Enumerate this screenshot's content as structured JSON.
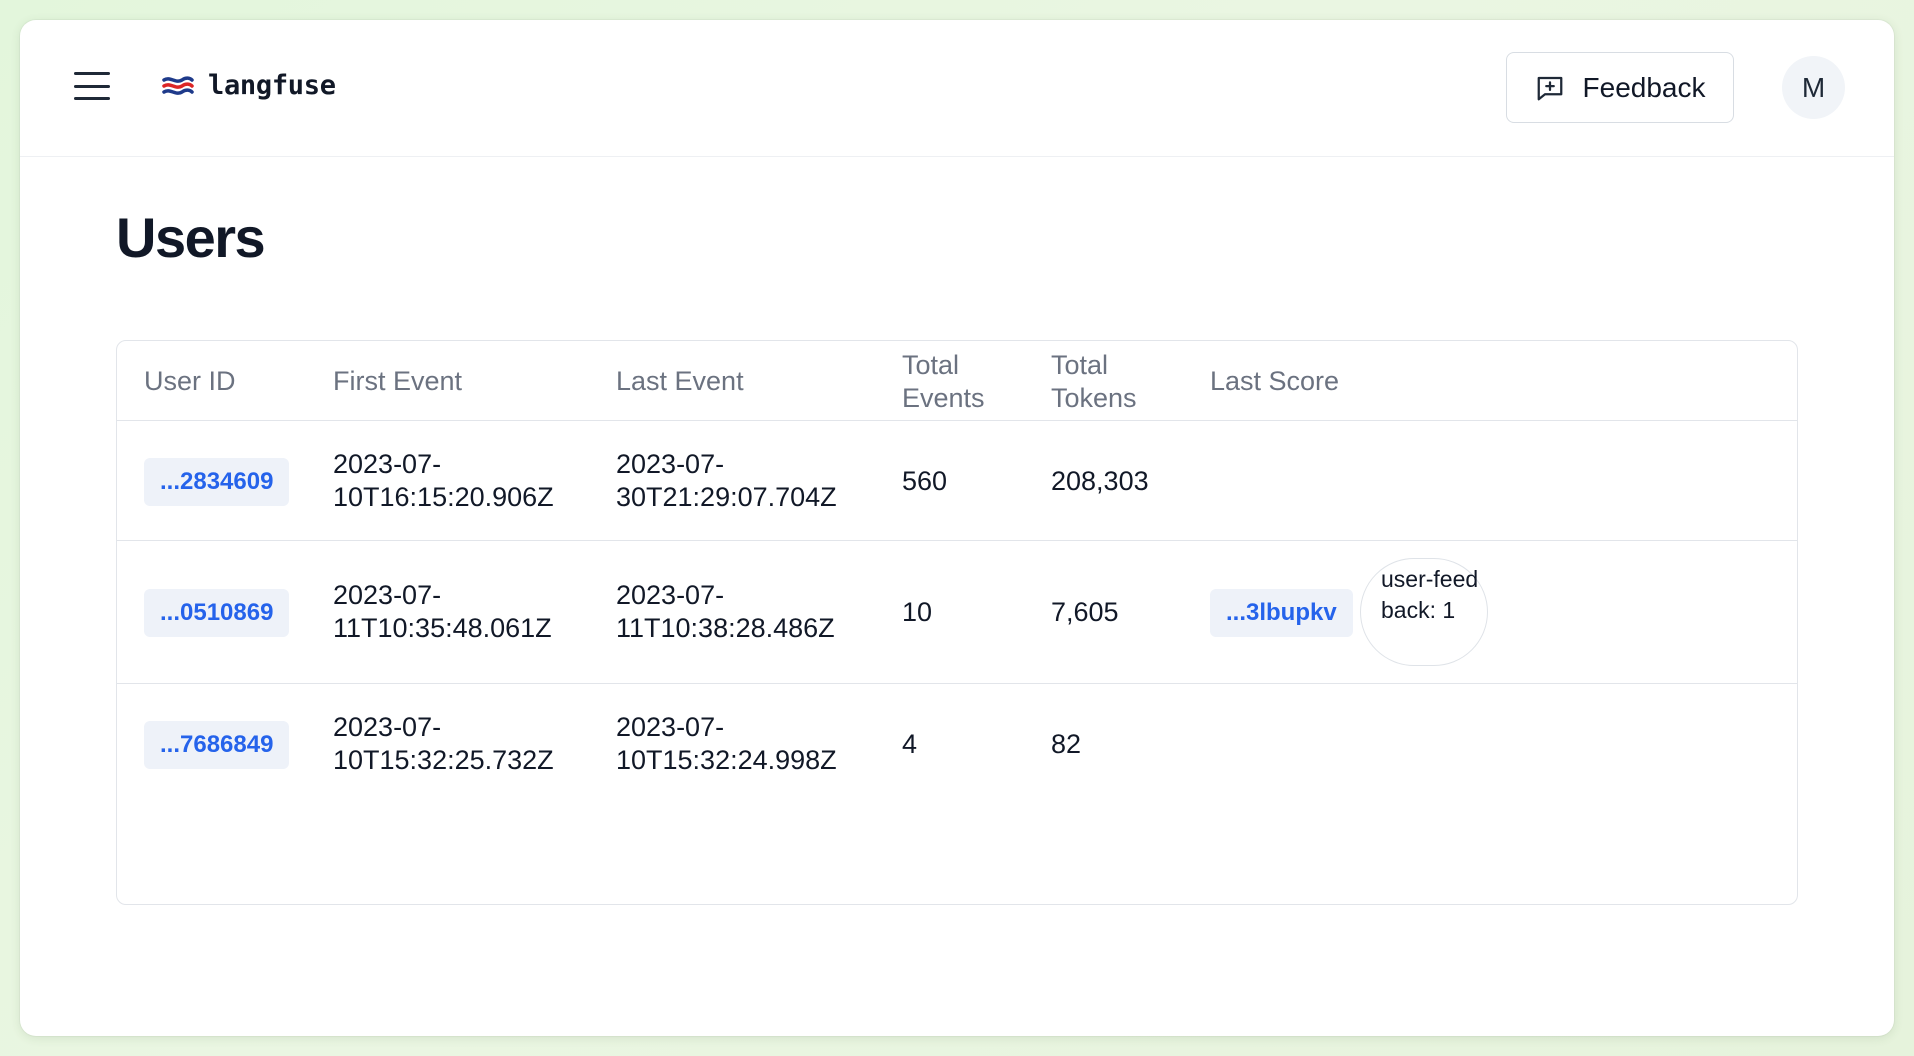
{
  "app": {
    "brand_name": "langfuse",
    "menu_icon": "hamburger-menu-icon",
    "logo_icon": "langfuse-logo-icon",
    "feedback_label": "Feedback",
    "feedback_icon": "message-plus-icon",
    "avatar_initial": "M"
  },
  "page": {
    "title": "Users"
  },
  "table": {
    "headers": {
      "user_id": "User ID",
      "first_event": "First Event",
      "last_event": "Last Event",
      "total_events_1": "Total",
      "total_events_2": "Events",
      "total_tokens_1": "Total",
      "total_tokens_2": "Tokens",
      "last_score": "Last Score"
    },
    "rows": [
      {
        "user_id": "...2834609",
        "first_event_1": "2023-07-",
        "first_event_2": "10T16:15:20.906Z",
        "last_event_1": "2023-07-",
        "last_event_2": "30T21:29:07.704Z",
        "total_events": "560",
        "total_tokens": "208,303"
      },
      {
        "user_id": "...0510869",
        "first_event_1": "2023-07-",
        "first_event_2": "11T10:35:48.061Z",
        "last_event_1": "2023-07-",
        "last_event_2": "11T10:38:28.486Z",
        "total_events": "10",
        "total_tokens": "7,605",
        "last_score_id": "...3lbupkv",
        "last_score_value": "user-feedback: 1"
      },
      {
        "user_id": "...7686849",
        "first_event_1": "2023-07-",
        "first_event_2": "10T15:32:25.732Z",
        "last_event_1": "2023-07-",
        "last_event_2": "10T15:32:24.998Z",
        "total_events": "4",
        "total_tokens": "82"
      }
    ]
  },
  "colors": {
    "link_blue": "#2563eb",
    "pill_bg": "#eef2f9",
    "header_text": "#6b7280",
    "title_text": "#111827"
  }
}
